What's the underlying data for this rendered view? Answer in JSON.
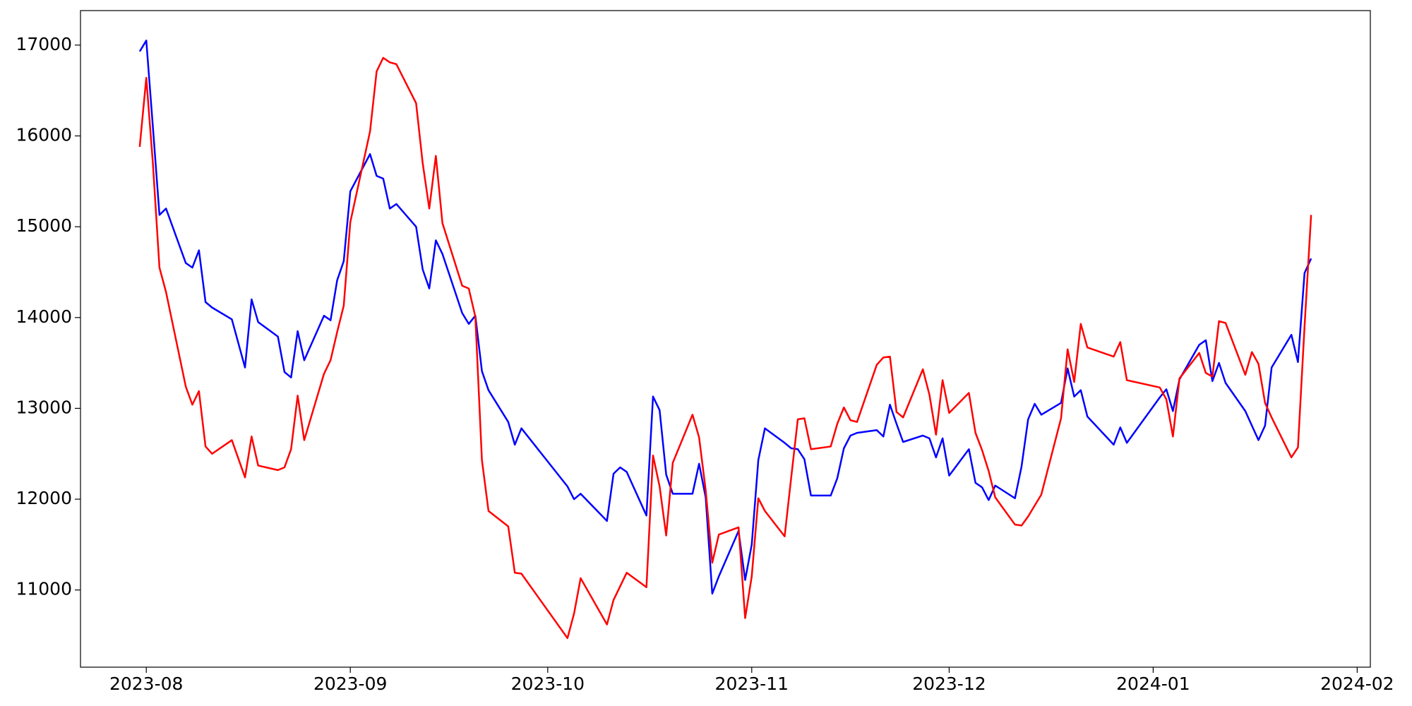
{
  "chart_data": {
    "type": "line",
    "x": [
      "2023-07-31",
      "2023-08-01",
      "2023-08-02",
      "2023-08-03",
      "2023-08-04",
      "2023-08-07",
      "2023-08-08",
      "2023-08-09",
      "2023-08-10",
      "2023-08-11",
      "2023-08-14",
      "2023-08-16",
      "2023-08-17",
      "2023-08-18",
      "2023-08-21",
      "2023-08-22",
      "2023-08-23",
      "2023-08-24",
      "2023-08-25",
      "2023-08-28",
      "2023-08-29",
      "2023-08-30",
      "2023-08-31",
      "2023-09-01",
      "2023-09-04",
      "2023-09-05",
      "2023-09-06",
      "2023-09-07",
      "2023-09-08",
      "2023-09-11",
      "2023-09-12",
      "2023-09-13",
      "2023-09-14",
      "2023-09-15",
      "2023-09-18",
      "2023-09-19",
      "2023-09-20",
      "2023-09-21",
      "2023-09-22",
      "2023-09-25",
      "2023-09-26",
      "2023-09-27",
      "2023-10-04",
      "2023-10-05",
      "2023-10-06",
      "2023-10-10",
      "2023-10-11",
      "2023-10-12",
      "2023-10-13",
      "2023-10-16",
      "2023-10-17",
      "2023-10-18",
      "2023-10-19",
      "2023-10-20",
      "2023-10-23",
      "2023-10-24",
      "2023-10-25",
      "2023-10-26",
      "2023-10-27",
      "2023-10-30",
      "2023-10-31",
      "2023-11-01",
      "2023-11-02",
      "2023-11-03",
      "2023-11-06",
      "2023-11-07",
      "2023-11-08",
      "2023-11-09",
      "2023-11-10",
      "2023-11-13",
      "2023-11-14",
      "2023-11-15",
      "2023-11-16",
      "2023-11-17",
      "2023-11-20",
      "2023-11-21",
      "2023-11-22",
      "2023-11-23",
      "2023-11-24",
      "2023-11-27",
      "2023-11-28",
      "2023-11-29",
      "2023-11-30",
      "2023-12-01",
      "2023-12-04",
      "2023-12-05",
      "2023-12-06",
      "2023-12-07",
      "2023-12-08",
      "2023-12-11",
      "2023-12-12",
      "2023-12-13",
      "2023-12-14",
      "2023-12-15",
      "2023-12-18",
      "2023-12-19",
      "2023-12-20",
      "2023-12-21",
      "2023-12-22",
      "2023-12-26",
      "2023-12-27",
      "2023-12-28",
      "2024-01-02",
      "2024-01-03",
      "2024-01-04",
      "2024-01-05",
      "2024-01-08",
      "2024-01-09",
      "2024-01-10",
      "2024-01-11",
      "2024-01-12",
      "2024-01-15",
      "2024-01-16",
      "2024-01-17",
      "2024-01-18",
      "2024-01-19",
      "2024-01-22",
      "2024-01-23",
      "2024-01-24",
      "2024-01-25"
    ],
    "series": [
      {
        "color": "#0000ff",
        "values": [
          16930,
          17050,
          16100,
          15130,
          15200,
          14600,
          14550,
          14740,
          14170,
          14110,
          13980,
          13450,
          14200,
          13950,
          13790,
          13400,
          13340,
          13850,
          13530,
          14020,
          13970,
          14410,
          14620,
          15390,
          15800,
          15560,
          15530,
          15200,
          15250,
          15000,
          14530,
          14320,
          14850,
          14700,
          14050,
          13930,
          14020,
          13410,
          13200,
          12850,
          12600,
          12780,
          12140,
          12000,
          12060,
          11760,
          12280,
          12350,
          12300,
          11820,
          13130,
          12980,
          12270,
          12060,
          12060,
          12390,
          12020,
          10960,
          11150,
          11650,
          11110,
          11500,
          12430,
          12780,
          12620,
          12560,
          12550,
          12440,
          12040,
          12040,
          12230,
          12560,
          12700,
          12730,
          12760,
          12690,
          13040,
          12830,
          12630,
          12700,
          12670,
          12460,
          12670,
          12260,
          12550,
          12180,
          12130,
          11990,
          12150,
          12010,
          12360,
          12880,
          13050,
          12930,
          13060,
          13440,
          13130,
          13200,
          12910,
          12600,
          12790,
          12620,
          13120,
          13210,
          12970,
          13320,
          13700,
          13750,
          13300,
          13500,
          13280,
          12970,
          12810,
          12650,
          12810,
          13450,
          13810,
          13510,
          14490,
          14650
        ]
      },
      {
        "color": "#ff0000",
        "values": [
          15880,
          16640,
          15700,
          14550,
          14280,
          13240,
          13040,
          13190,
          12580,
          12500,
          12650,
          12240,
          12690,
          12370,
          12320,
          12350,
          12550,
          13140,
          12650,
          13380,
          13530,
          13840,
          14130,
          15050,
          16050,
          16710,
          16860,
          16810,
          16790,
          16360,
          15700,
          15200,
          15780,
          15040,
          14350,
          14320,
          14010,
          12430,
          11870,
          11700,
          11190,
          11180,
          10470,
          10740,
          11130,
          10620,
          10890,
          11040,
          11190,
          11030,
          12480,
          12140,
          11600,
          12400,
          12930,
          12680,
          12100,
          11300,
          11610,
          11690,
          10690,
          11150,
          12010,
          11870,
          11590,
          12240,
          12880,
          12890,
          12550,
          12580,
          12830,
          13010,
          12870,
          12850,
          13480,
          13560,
          13570,
          12960,
          12900,
          13430,
          13150,
          12710,
          13310,
          12950,
          13170,
          12730,
          12540,
          12310,
          12020,
          11720,
          11710,
          11810,
          11930,
          12050,
          12890,
          13650,
          13290,
          13930,
          13670,
          13570,
          13730,
          13310,
          13230,
          13100,
          12690,
          13330,
          13610,
          13390,
          13350,
          13960,
          13940,
          13370,
          13620,
          13490,
          13060,
          12900,
          12460,
          12570,
          13900,
          15130
        ]
      }
    ],
    "xlim": [
      "2023-07-22",
      "2024-02-03"
    ],
    "xticks": [
      {
        "value": "2023-08-01",
        "label": "2023-08"
      },
      {
        "value": "2023-09-01",
        "label": "2023-09"
      },
      {
        "value": "2023-10-01",
        "label": "2023-10"
      },
      {
        "value": "2023-11-01",
        "label": "2023-11"
      },
      {
        "value": "2023-12-01",
        "label": "2023-12"
      },
      {
        "value": "2024-01-01",
        "label": "2024-01"
      },
      {
        "value": "2024-02-01",
        "label": "2024-02"
      }
    ],
    "ylim": [
      10150,
      17380
    ],
    "yticks": [
      11000,
      12000,
      13000,
      14000,
      15000,
      16000,
      17000
    ],
    "grid": false
  }
}
